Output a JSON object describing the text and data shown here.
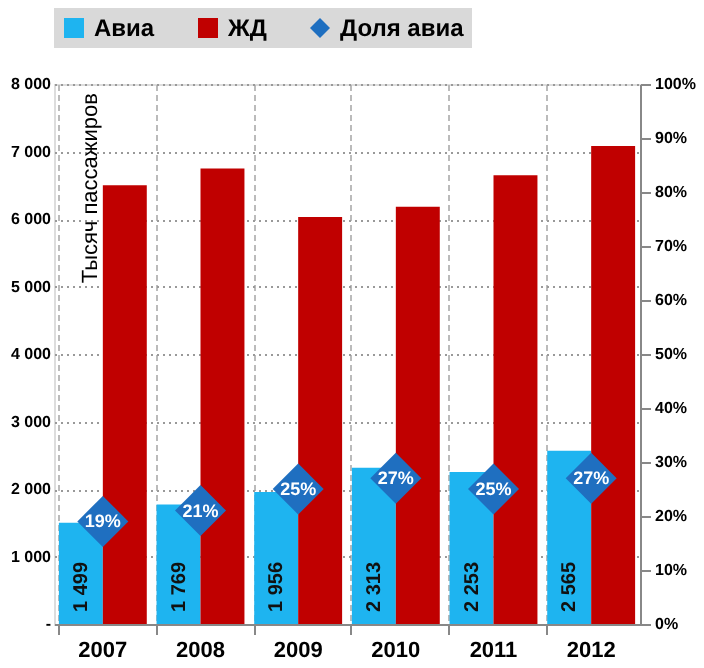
{
  "chart_data": {
    "type": "bar",
    "ylabel": "Тысяч пассажиров",
    "categories": [
      "2007",
      "2008",
      "2009",
      "2010",
      "2011",
      "2012"
    ],
    "series": [
      {
        "name": "Авиа",
        "color": "#1eb4f0",
        "values": [
          1499,
          1769,
          1956,
          2313,
          2253,
          2565
        ],
        "value_labels": [
          "1 499",
          "1 769",
          "1 956",
          "2 313",
          "2 253",
          "2 565"
        ]
      },
      {
        "name": "ЖД",
        "color": "#c00000",
        "values": [
          6500,
          6750,
          6030,
          6180,
          6650,
          7080
        ]
      },
      {
        "name": "Доля авиа",
        "type": "scatter",
        "axis": "y2",
        "marker": "diamond",
        "color": "#1f6fc0",
        "values": [
          19,
          21,
          25,
          27,
          25,
          27
        ],
        "value_labels": [
          "19%",
          "21%",
          "25%",
          "27%",
          "25%",
          "27%"
        ]
      }
    ],
    "ylim": [
      0,
      8000
    ],
    "yticks": [
      {
        "value": 0,
        "label": "-"
      },
      {
        "value": 1000,
        "label": "1 000"
      },
      {
        "value": 2000,
        "label": "2 000"
      },
      {
        "value": 3000,
        "label": "3 000"
      },
      {
        "value": 4000,
        "label": "4 000"
      },
      {
        "value": 5000,
        "label": "5 000"
      },
      {
        "value": 6000,
        "label": "6 000"
      },
      {
        "value": 7000,
        "label": "7 000"
      },
      {
        "value": 8000,
        "label": "8 000"
      }
    ],
    "y2lim": [
      0,
      100
    ],
    "y2ticks": [
      {
        "value": 0,
        "label": "0%"
      },
      {
        "value": 10,
        "label": "10%"
      },
      {
        "value": 20,
        "label": "20%"
      },
      {
        "value": 30,
        "label": "30%"
      },
      {
        "value": 40,
        "label": "40%"
      },
      {
        "value": 50,
        "label": "50%"
      },
      {
        "value": 60,
        "label": "60%"
      },
      {
        "value": 70,
        "label": "70%"
      },
      {
        "value": 80,
        "label": "80%"
      },
      {
        "value": 90,
        "label": "90%"
      },
      {
        "value": 100,
        "label": "100%"
      }
    ],
    "grid": true,
    "legend": "top"
  }
}
